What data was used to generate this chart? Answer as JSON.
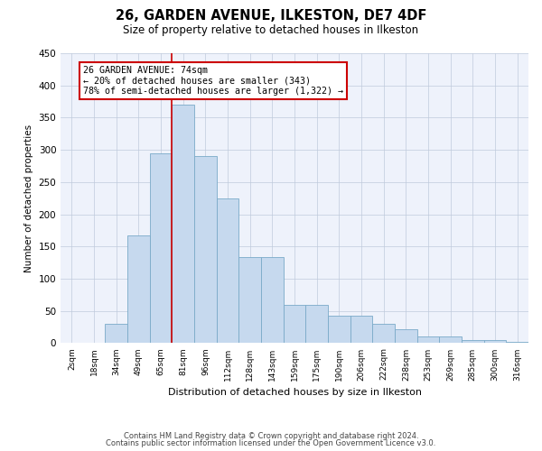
{
  "title": "26, GARDEN AVENUE, ILKESTON, DE7 4DF",
  "subtitle": "Size of property relative to detached houses in Ilkeston",
  "xlabel": "Distribution of detached houses by size in Ilkeston",
  "ylabel": "Number of detached properties",
  "bar_labels": [
    "2sqm",
    "18sqm",
    "34sqm",
    "49sqm",
    "65sqm",
    "81sqm",
    "96sqm",
    "112sqm",
    "128sqm",
    "143sqm",
    "159sqm",
    "175sqm",
    "190sqm",
    "206sqm",
    "222sqm",
    "238sqm",
    "253sqm",
    "269sqm",
    "285sqm",
    "300sqm",
    "316sqm"
  ],
  "bar_values": [
    0,
    0,
    30,
    167,
    295,
    370,
    290,
    225,
    133,
    133,
    60,
    60,
    43,
    43,
    30,
    22,
    11,
    11,
    5,
    5,
    2
  ],
  "bar_color": "#c6d9ee",
  "bar_edge_color": "#7aaac8",
  "background_color": "#eef2fb",
  "annotation_text": "26 GARDEN AVENUE: 74sqm\n← 20% of detached houses are smaller (343)\n78% of semi-detached houses are larger (1,322) →",
  "annotation_box_color": "#ffffff",
  "annotation_border_color": "#cc0000",
  "vline_x_index": 4.5,
  "ylim": [
    0,
    450
  ],
  "yticks": [
    0,
    50,
    100,
    150,
    200,
    250,
    300,
    350,
    400,
    450
  ],
  "footer_line1": "Contains HM Land Registry data © Crown copyright and database right 2024.",
  "footer_line2": "Contains public sector information licensed under the Open Government Licence v3.0."
}
